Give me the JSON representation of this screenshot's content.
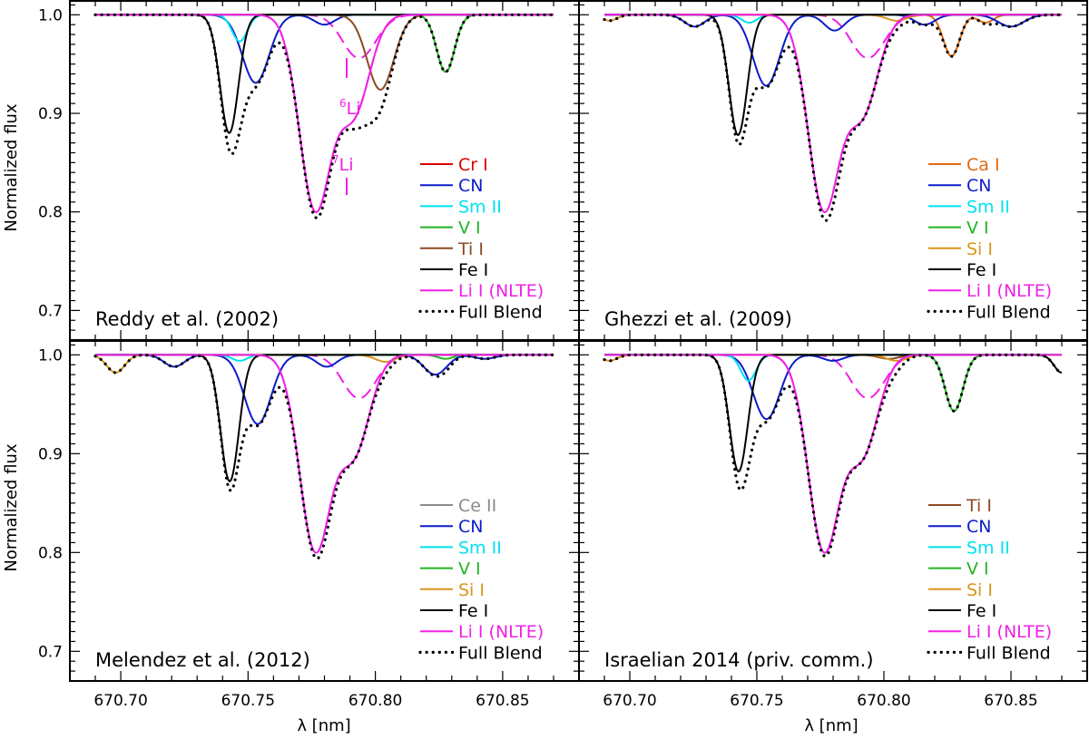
{
  "figure": {
    "ylabel": "Normalized flux",
    "xlabel": "λ [nm]",
    "xticks": [
      "670.70",
      "670.75",
      "670.80",
      "670.85"
    ],
    "yticks": [
      "0.7",
      "0.8",
      "0.9",
      "1.0"
    ],
    "li6_label": "Li",
    "li6_sup": "6",
    "li7_label": "Li",
    "li7_sup": "7"
  },
  "colors": {
    "Cr I": "#dd0000",
    "CN": "#0b1cc8",
    "Sm II": "#00e0f0",
    "V I": "#22b422",
    "Ti I": "#8c4a22",
    "Fe I": "#000000",
    "Li I (NLTE)": "#f020e6",
    "Full Blend": "#000000",
    "Ca I": "#e06a10",
    "Si I": "#d8961a",
    "Ce II": "#8a8a8a"
  },
  "chart_data": [
    {
      "type": "line",
      "title": "Reddy et al. (2002)",
      "xlabel": "λ [nm]",
      "ylabel": "Normalized flux",
      "xlim": [
        670.69,
        670.87
      ],
      "ylim": [
        0.67,
        1.015
      ],
      "legend_position": "lower-right",
      "legend": [
        "Cr I",
        "CN",
        "Sm II",
        "V I",
        "Ti I",
        "Fe I",
        "Li I (NLTE)",
        "Full Blend"
      ],
      "series": [
        {
          "name": "Cr I",
          "lines": []
        },
        {
          "name": "CN",
          "lines": [
            [
              670.753,
              0.069,
              0.0052
            ],
            [
              670.78,
              0.01,
              0.004
            ]
          ]
        },
        {
          "name": "Sm II",
          "lines": [
            [
              670.7467,
              0.027,
              0.003
            ]
          ]
        },
        {
          "name": "V I",
          "lines": [
            [
              670.8276,
              0.058,
              0.0035
            ]
          ]
        },
        {
          "name": "Ti I",
          "lines": [
            [
              670.802,
              0.076,
              0.0052
            ]
          ]
        },
        {
          "name": "Fe I",
          "lines": [
            [
              670.7426,
              0.12,
              0.0036
            ]
          ]
        },
        {
          "name": "Li I (NLTE)",
          "lines": [
            [
              670.7764,
              0.196,
              0.0062
            ],
            [
              670.7915,
              0.098,
              0.0062
            ]
          ]
        },
        {
          "name": "Full Blend",
          "min": 0.7,
          "style": "dotted"
        }
      ],
      "li_isotopes": [
        {
          "isotope": "6Li",
          "lines": [
            [
              670.7921,
              0.032,
              0.006
            ],
            [
              670.7972,
              0.016,
              0.006
            ]
          ]
        },
        {
          "isotope": "7Li",
          "lines": [
            [
              670.7764,
              0.196,
              0.0062
            ],
            [
              670.7915,
              0.098,
              0.0062
            ]
          ]
        }
      ]
    },
    {
      "type": "line",
      "title": "Ghezzi et al. (2009)",
      "xlabel": "λ [nm]",
      "ylabel": "",
      "xlim": [
        670.69,
        670.87
      ],
      "ylim": [
        0.67,
        1.015
      ],
      "legend_position": "lower-right",
      "legend": [
        "Ca I",
        "CN",
        "Sm II",
        "V I",
        "Si I",
        "Fe I",
        "Li I (NLTE)",
        "Full Blend"
      ],
      "series": [
        {
          "name": "Ca I",
          "lines": [
            [
              670.8266,
              0.042,
              0.0032
            ],
            [
              670.84,
              0.008,
              0.003
            ]
          ]
        },
        {
          "name": "CN",
          "lines": [
            [
              670.7537,
              0.072,
              0.0052
            ],
            [
              670.7255,
              0.012,
              0.004
            ],
            [
              670.7806,
              0.016,
              0.004
            ],
            [
              670.816,
              0.01,
              0.004
            ],
            [
              670.85,
              0.012,
              0.005
            ]
          ]
        },
        {
          "name": "Sm II",
          "lines": [
            [
              670.747,
              0.008,
              0.003
            ]
          ]
        },
        {
          "name": "V I",
          "lines": []
        },
        {
          "name": "Si I",
          "lines": [
            [
              670.692,
              0.006,
              0.003
            ],
            [
              670.805,
              0.006,
              0.004
            ]
          ]
        },
        {
          "name": "Fe I",
          "lines": [
            [
              670.7426,
              0.122,
              0.0036
            ]
          ]
        },
        {
          "name": "Li I (NLTE)",
          "lines": [
            [
              670.7764,
              0.196,
              0.0062
            ],
            [
              670.7915,
              0.098,
              0.0062
            ]
          ]
        },
        {
          "name": "Full Blend",
          "min": 0.7,
          "style": "dotted"
        }
      ],
      "li_isotopes": [
        {
          "isotope": "6Li",
          "lines": [
            [
              670.7921,
              0.032,
              0.006
            ],
            [
              670.7972,
              0.016,
              0.006
            ]
          ]
        },
        {
          "isotope": "7Li",
          "lines": [
            [
              670.7764,
              0.196,
              0.0062
            ],
            [
              670.7915,
              0.098,
              0.0062
            ]
          ]
        }
      ]
    },
    {
      "type": "line",
      "title": "Melendez et al. (2012)",
      "xlabel": "λ [nm]",
      "ylabel": "Normalized flux",
      "xlim": [
        670.69,
        670.87
      ],
      "ylim": [
        0.67,
        1.015
      ],
      "legend_position": "lower-right",
      "legend": [
        "Ce II",
        "CN",
        "Sm II",
        "V I",
        "Si I",
        "Fe I",
        "Li I (NLTE)",
        "Full Blend"
      ],
      "series": [
        {
          "name": "Ce II",
          "lines": []
        },
        {
          "name": "CN",
          "lines": [
            [
              670.7538,
              0.07,
              0.0052
            ],
            [
              670.721,
              0.012,
              0.004
            ],
            [
              670.7809,
              0.012,
              0.004
            ],
            [
              670.8235,
              0.02,
              0.0045
            ],
            [
              670.843,
              0.004,
              0.004
            ]
          ]
        },
        {
          "name": "Sm II",
          "lines": [
            [
              670.7467,
              0.006,
              0.003
            ]
          ]
        },
        {
          "name": "V I",
          "lines": [
            [
              670.8276,
              0.004,
              0.003
            ]
          ]
        },
        {
          "name": "Si I",
          "lines": [
            [
              670.698,
              0.018,
              0.0035
            ],
            [
              670.804,
              0.007,
              0.004
            ]
          ]
        },
        {
          "name": "Fe I",
          "lines": [
            [
              670.7428,
              0.128,
              0.0036
            ]
          ]
        },
        {
          "name": "Li I (NLTE)",
          "lines": [
            [
              670.7764,
              0.196,
              0.0062
            ],
            [
              670.7915,
              0.098,
              0.0062
            ]
          ]
        },
        {
          "name": "Full Blend",
          "min": 0.7,
          "style": "dotted"
        }
      ],
      "li_isotopes": [
        {
          "isotope": "6Li",
          "lines": [
            [
              670.7921,
              0.032,
              0.006
            ],
            [
              670.7972,
              0.016,
              0.006
            ]
          ]
        },
        {
          "isotope": "7Li",
          "lines": [
            [
              670.7764,
              0.196,
              0.0062
            ],
            [
              670.7915,
              0.098,
              0.0062
            ]
          ]
        }
      ]
    },
    {
      "type": "line",
      "title": "Israelian 2014 (priv. comm.)",
      "xlabel": "λ [nm]",
      "ylabel": "",
      "xlim": [
        670.69,
        670.87
      ],
      "ylim": [
        0.67,
        1.015
      ],
      "legend_position": "lower-right",
      "legend": [
        "Ti I",
        "CN",
        "Sm II",
        "V I",
        "Si I",
        "Fe I",
        "Li I (NLTE)",
        "Full Blend"
      ],
      "series": [
        {
          "name": "Ti I",
          "lines": [
            [
              670.802,
              0.004,
              0.004
            ]
          ]
        },
        {
          "name": "CN",
          "lines": [
            [
              670.7538,
              0.065,
              0.0052
            ],
            [
              670.78,
              0.006,
              0.004
            ]
          ]
        },
        {
          "name": "Sm II",
          "lines": [
            [
              670.7467,
              0.026,
              0.003
            ]
          ]
        },
        {
          "name": "V I",
          "lines": [
            [
              670.8276,
              0.057,
              0.0035
            ]
          ]
        },
        {
          "name": "Si I",
          "lines": [
            [
              670.692,
              0.006,
              0.003
            ],
            [
              670.805,
              0.006,
              0.004
            ]
          ]
        },
        {
          "name": "Fe I",
          "lines": [
            [
              670.7428,
              0.118,
              0.0036
            ],
            [
              670.87,
              0.018,
              0.003
            ]
          ]
        },
        {
          "name": "Li I (NLTE)",
          "lines": [
            [
              670.7764,
              0.196,
              0.0062
            ],
            [
              670.7915,
              0.098,
              0.0062
            ]
          ]
        },
        {
          "name": "Full Blend",
          "min": 0.7,
          "style": "dotted"
        }
      ],
      "li_isotopes": [
        {
          "isotope": "6Li",
          "lines": [
            [
              670.7921,
              0.032,
              0.006
            ],
            [
              670.7972,
              0.016,
              0.006
            ]
          ]
        },
        {
          "isotope": "7Li",
          "lines": [
            [
              670.7764,
              0.196,
              0.0062
            ],
            [
              670.7915,
              0.098,
              0.0062
            ]
          ]
        }
      ]
    }
  ]
}
